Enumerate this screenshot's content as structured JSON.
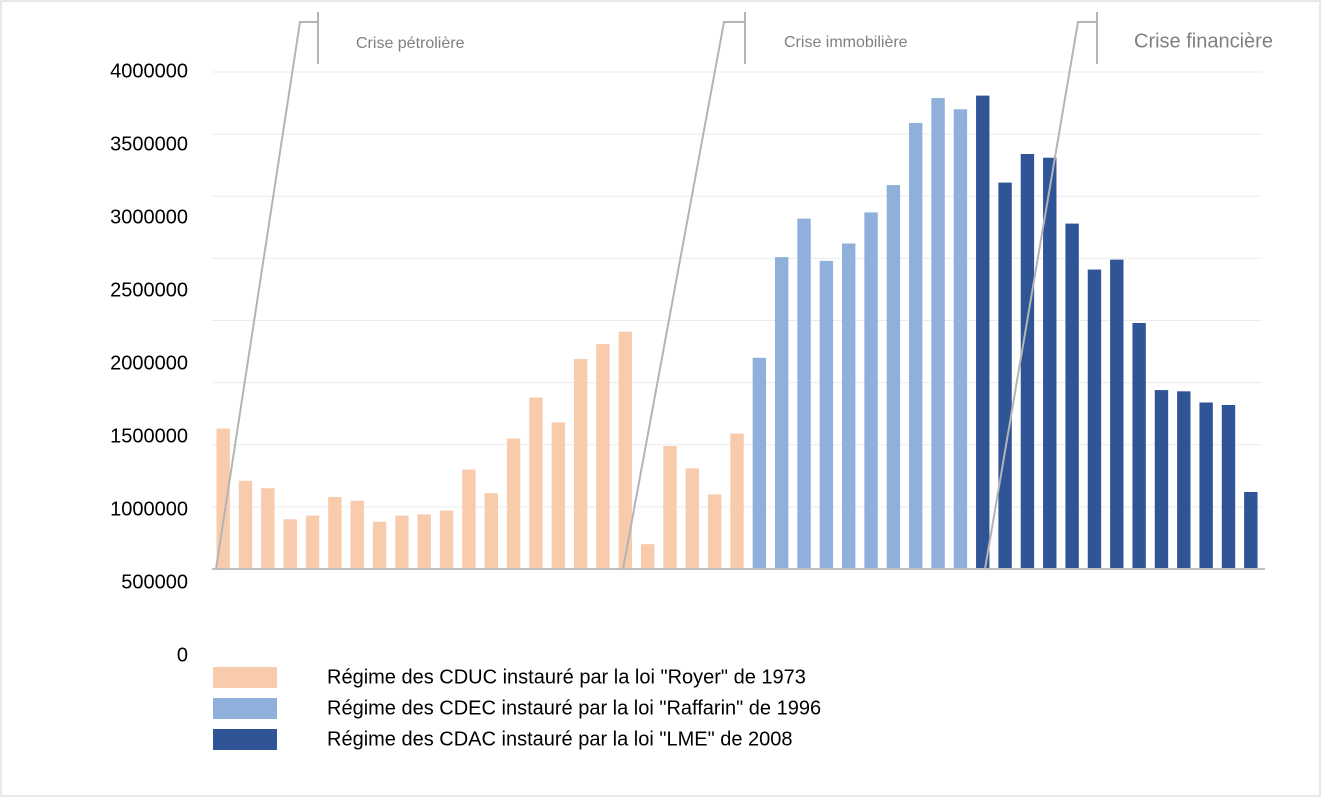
{
  "chart_data": {
    "type": "bar",
    "categories": [
      null,
      null,
      null,
      null,
      null,
      null,
      null,
      null,
      null,
      null,
      null,
      null,
      null,
      null,
      null,
      null,
      null,
      null,
      null,
      null,
      null,
      null,
      null,
      null,
      null,
      null,
      null,
      null,
      null,
      null,
      null,
      null,
      null,
      null,
      null,
      null,
      null,
      null,
      null,
      null,
      null,
      null,
      null,
      null,
      null,
      null,
      null
    ],
    "series": [
      {
        "name": "Régime des CDUC instauré par la loi \"Royer\" de 1973",
        "color": "#f8cbad",
        "values": [
          1130000,
          710000,
          650000,
          400000,
          430000,
          580000,
          550000,
          380000,
          430000,
          440000,
          470000,
          800000,
          610000,
          1050000,
          1380000,
          1180000,
          1690000,
          1810000,
          1910000,
          200000,
          990000,
          810000,
          600000,
          1090000,
          null,
          null,
          null,
          null,
          null,
          null,
          null,
          null,
          null,
          null,
          null,
          null,
          null,
          null,
          null,
          null,
          null,
          null,
          null,
          null,
          null,
          null,
          null
        ]
      },
      {
        "name": "Régime des CDEC instauré par la loi \"Raffarin\" de 1996",
        "color": "#8eb0da",
        "values": [
          null,
          null,
          null,
          null,
          null,
          null,
          null,
          null,
          null,
          null,
          null,
          null,
          null,
          null,
          null,
          null,
          null,
          null,
          null,
          null,
          null,
          null,
          null,
          null,
          1700000,
          2510000,
          2820000,
          2480000,
          2620000,
          2870000,
          3090000,
          3590000,
          3790000,
          3700000,
          null,
          null,
          null,
          null,
          null,
          null,
          null,
          null,
          null,
          null,
          null,
          null,
          null
        ]
      },
      {
        "name": "Régime des CDAC instauré par la loi \"LME\" de 2008",
        "color": "#2f5597",
        "values": [
          null,
          null,
          null,
          null,
          null,
          null,
          null,
          null,
          null,
          null,
          null,
          null,
          null,
          null,
          null,
          null,
          null,
          null,
          null,
          null,
          null,
          null,
          null,
          null,
          null,
          null,
          null,
          null,
          null,
          null,
          null,
          null,
          null,
          null,
          3810000,
          3110000,
          3340000,
          3310000,
          2780000,
          2410000,
          2490000,
          1980000,
          1440000,
          1430000,
          1340000,
          1320000,
          620000
        ]
      }
    ],
    "annotations": [
      "Crise pétrolière",
      "Crise immobilière",
      "Crise financière"
    ],
    "ylim": [
      0,
      4000000
    ],
    "yticks": [
      0,
      500000,
      1000000,
      1500000,
      2000000,
      2500000,
      3000000,
      3500000,
      4000000
    ],
    "grid": true
  }
}
